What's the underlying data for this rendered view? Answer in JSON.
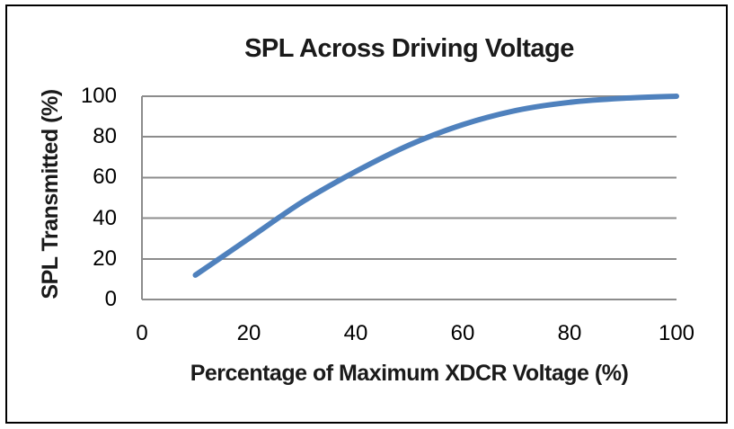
{
  "chart": {
    "title": "SPL Across Driving Voltage",
    "x_axis_title": "Percentage of Maximum XDCR Voltage (%)",
    "y_axis_title": "SPL Transmitted (%)"
  },
  "chart_data": {
    "type": "line",
    "title": "SPL Across Driving Voltage",
    "xlabel": "Percentage of Maximum XDCR Voltage (%)",
    "ylabel": "SPL Transmitted (%)",
    "xlim": [
      0,
      100
    ],
    "ylim": [
      0,
      100
    ],
    "xticks": [
      0,
      20,
      40,
      60,
      80,
      100
    ],
    "yticks": [
      0,
      20,
      40,
      60,
      80,
      100
    ],
    "grid": "horizontal",
    "legend": "none",
    "smooth": true,
    "markers": false,
    "line_color": "#4F81BD",
    "gridline_color": "#8C8C8C",
    "frame_color": "#000000",
    "series": [
      {
        "name": "SPL Transmitted",
        "x": [
          10,
          20,
          30,
          40,
          50,
          60,
          70,
          80,
          90,
          100
        ],
        "y": [
          12,
          30,
          48,
          63,
          76,
          86,
          93,
          97,
          99,
          100
        ]
      }
    ]
  }
}
